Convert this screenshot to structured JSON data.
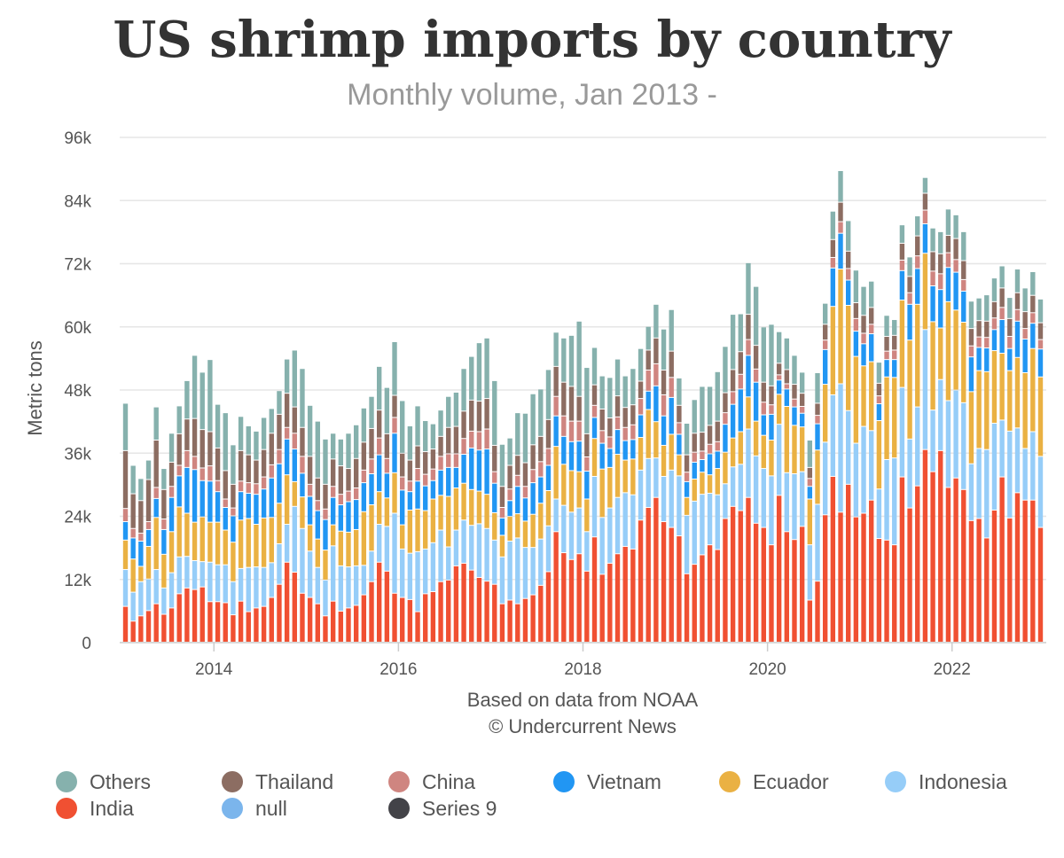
{
  "chart_data": {
    "type": "bar",
    "stacked": true,
    "title": "US shrimp imports by country",
    "subtitle": "Monthly volume, Jan 2013 -",
    "ylabel": "Metric tons",
    "xlabel": "Based on data from NOAA",
    "credit": "© Undercurrent News",
    "ylim": [
      0,
      96000
    ],
    "yticks": [
      0,
      12000,
      24000,
      36000,
      48000,
      60000,
      72000,
      84000,
      96000
    ],
    "ytick_labels": [
      "0",
      "12k",
      "24k",
      "36k",
      "48k",
      "60k",
      "72k",
      "84k",
      "96k"
    ],
    "xticks": [
      "2014",
      "2016",
      "2018",
      "2020",
      "2022"
    ],
    "x_start": "2013-01",
    "grid": true,
    "legend_position": "bottom",
    "legend": [
      {
        "name": "Others",
        "color": "#86b1ad"
      },
      {
        "name": "Thailand",
        "color": "#8c6d62"
      },
      {
        "name": "China",
        "color": "#cf8580"
      },
      {
        "name": "Vietnam",
        "color": "#2196f3"
      },
      {
        "name": "Ecuador",
        "color": "#eab143"
      },
      {
        "name": "Indonesia",
        "color": "#96cdf8"
      },
      {
        "name": "India",
        "color": "#f05032"
      },
      {
        "name": "null",
        "color": "#7bb5ec"
      },
      {
        "name": "Series 9",
        "color": "#434348"
      }
    ],
    "months": [
      "2013-01",
      "2013-02",
      "2013-03",
      "2013-04",
      "2013-05",
      "2013-06",
      "2013-07",
      "2013-08",
      "2013-09",
      "2013-10",
      "2013-11",
      "2013-12",
      "2014-01",
      "2014-02",
      "2014-03",
      "2014-04",
      "2014-05",
      "2014-06",
      "2014-07",
      "2014-08",
      "2014-09",
      "2014-10",
      "2014-11",
      "2014-12",
      "2015-01",
      "2015-02",
      "2015-03",
      "2015-04",
      "2015-05",
      "2015-06",
      "2015-07",
      "2015-08",
      "2015-09",
      "2015-10",
      "2015-11",
      "2015-12",
      "2016-01",
      "2016-02",
      "2016-03",
      "2016-04",
      "2016-05",
      "2016-06",
      "2016-07",
      "2016-08",
      "2016-09",
      "2016-10",
      "2016-11",
      "2016-12",
      "2017-01",
      "2017-02",
      "2017-03",
      "2017-04",
      "2017-05",
      "2017-06",
      "2017-07",
      "2017-08",
      "2017-09",
      "2017-10",
      "2017-11",
      "2017-12",
      "2018-01",
      "2018-02",
      "2018-03",
      "2018-04",
      "2018-05",
      "2018-06",
      "2018-07",
      "2018-08",
      "2018-09",
      "2018-10",
      "2018-11",
      "2018-12",
      "2019-01",
      "2019-02",
      "2019-03",
      "2019-04",
      "2019-05",
      "2019-06",
      "2019-07",
      "2019-08",
      "2019-09",
      "2019-10",
      "2019-11",
      "2019-12",
      "2020-01",
      "2020-02",
      "2020-03",
      "2020-04",
      "2020-05",
      "2020-06",
      "2020-07",
      "2020-08",
      "2020-09",
      "2020-10",
      "2020-11",
      "2020-12",
      "2021-01",
      "2021-02",
      "2021-03",
      "2021-04",
      "2021-05",
      "2021-06",
      "2021-07",
      "2021-08",
      "2021-09",
      "2021-10",
      "2021-11",
      "2021-12",
      "2022-01",
      "2022-02",
      "2022-03",
      "2022-04",
      "2022-05",
      "2022-06",
      "2022-07",
      "2022-08",
      "2022-09",
      "2022-10",
      "2022-11",
      "2022-12"
    ],
    "series": [
      {
        "name": "India",
        "color": "#f05032",
        "values": [
          6800,
          4000,
          5000,
          6000,
          7300,
          5300,
          6500,
          9200,
          10300,
          10000,
          10500,
          7700,
          7700,
          7500,
          5200,
          7800,
          5800,
          6500,
          6800,
          8500,
          11000,
          15200,
          13300,
          9300,
          8500,
          7300,
          5000,
          7800,
          5900,
          6500,
          7000,
          9000,
          11500,
          15200,
          13500,
          9300,
          8500,
          8100,
          5800,
          9200,
          9600,
          11500,
          11800,
          14500,
          15000,
          13700,
          12300,
          11600,
          11000,
          7300,
          8000,
          7300,
          8300,
          9000,
          10800,
          13400,
          21000,
          17000,
          15700,
          16800,
          13500,
          20000,
          12900,
          15000,
          16800,
          18200,
          17700,
          23200,
          25600,
          27500,
          22900,
          21800,
          20200,
          13000,
          14800,
          16600,
          18500,
          17600,
          23500,
          25800,
          25000,
          27500,
          22600,
          21800,
          18500,
          27900,
          21000,
          19500,
          22000,
          8000,
          11600,
          24200,
          31500,
          24700,
          30000,
          23800,
          24500,
          27000,
          19700,
          19400,
          18500,
          31400,
          25500,
          29700,
          36600,
          32400,
          36400,
          29400,
          31200,
          29000,
          23100,
          23500,
          19800,
          25100,
          31400,
          23600,
          28400,
          27000,
          27000,
          21800
        ]
      },
      {
        "name": "Indonesia",
        "color": "#96cdf8",
        "values": [
          7000,
          5500,
          6500,
          6000,
          6500,
          5000,
          6700,
          7000,
          6000,
          5500,
          4800,
          7500,
          7000,
          7200,
          6300,
          6200,
          8400,
          7800,
          7400,
          6600,
          7700,
          7200,
          12500,
          12300,
          8800,
          6900,
          6800,
          10500,
          8600,
          7800,
          7500,
          5600,
          5800,
          7200,
          8500,
          15200,
          9200,
          8800,
          11400,
          8500,
          9300,
          9800,
          6300,
          6800,
          8200,
          8500,
          10200,
          10000,
          8400,
          8900,
          11200,
          12500,
          9700,
          9000,
          8800,
          8700,
          6200,
          9000,
          9000,
          8700,
          7500,
          11500,
          10800,
          10500,
          10700,
          10200,
          10300,
          9500,
          9300,
          7500,
          8600,
          10900,
          11400,
          11100,
          12000,
          11500,
          9800,
          10400,
          6600,
          7500,
          8800,
          13000,
          12800,
          11200,
          13100,
          13500,
          11200,
          12500,
          10400,
          10500,
          14600,
          13800,
          15500,
          24400,
          14000,
          14000,
          16500,
          13200,
          9400,
          15300,
          16500,
          17000,
          13100,
          15000,
          22800,
          11700,
          13500,
          16500,
          16700,
          16500,
          10800,
          13300,
          16800,
          16500,
          10800,
          16500,
          12300,
          9800,
          13000,
          13500
        ]
      },
      {
        "name": "Ecuador",
        "color": "#eab143",
        "values": [
          5600,
          6300,
          2900,
          6200,
          9900,
          6400,
          7800,
          9500,
          8200,
          7300,
          8500,
          7600,
          8100,
          6600,
          7500,
          9200,
          9300,
          8100,
          9400,
          8600,
          7700,
          9400,
          4700,
          6000,
          5000,
          5400,
          5700,
          4000,
          6600,
          6600,
          6900,
          10200,
          8800,
          6200,
          5400,
          7700,
          4600,
          8200,
          8100,
          7300,
          8300,
          6600,
          9600,
          8000,
          7000,
          6800,
          6200,
          6500,
          5200,
          4100,
          4700,
          4600,
          5000,
          6300,
          6800,
          6700,
          10000,
          7800,
          7900,
          6900,
          6200,
          7200,
          9200,
          7700,
          8200,
          6200,
          6800,
          6200,
          9300,
          6900,
          5900,
          6800,
          4000,
          3400,
          4200,
          4200,
          3500,
          5000,
          6000,
          5500,
          6200,
          6100,
          6600,
          6300,
          6800,
          5700,
          12600,
          9200,
          8500,
          8700,
          10300,
          11000,
          16800,
          21800,
          20000,
          16500,
          11500,
          13100,
          13000,
          15700,
          15300,
          16600,
          18800,
          19500,
          14500,
          16800,
          9800,
          18800,
          15200,
          15300,
          13700,
          14800,
          14800,
          13800,
          12700,
          11500,
          13400,
          14400,
          15800,
          15100
        ]
      },
      {
        "name": "Vietnam",
        "color": "#2196f3",
        "values": [
          3500,
          4000,
          4800,
          3200,
          3600,
          4700,
          6500,
          5900,
          8700,
          10000,
          6900,
          7800,
          5800,
          4300,
          5000,
          5400,
          4800,
          5700,
          5500,
          7500,
          7500,
          6800,
          6200,
          4500,
          5400,
          5400,
          5800,
          5200,
          5000,
          5800,
          5700,
          5500,
          5900,
          7000,
          4700,
          7500,
          6600,
          3500,
          5300,
          4700,
          3500,
          4800,
          5500,
          3900,
          5500,
          7900,
          7800,
          8600,
          5600,
          3300,
          3000,
          5200,
          4400,
          6000,
          5000,
          4800,
          5800,
          5300,
          5500,
          5800,
          5300,
          4000,
          4900,
          3600,
          4700,
          3700,
          3700,
          4300,
          3500,
          6800,
          5600,
          7000,
          3900,
          3000,
          3200,
          2400,
          4000,
          3300,
          5300,
          6400,
          8100,
          7900,
          7400,
          3900,
          4900,
          2700,
          3300,
          3500,
          2600,
          2400,
          5000,
          6600,
          7300,
          6800,
          4800,
          4800,
          4200,
          5300,
          3200,
          3300,
          3400,
          5600,
          6800,
          6800,
          5600,
          6800,
          7300,
          6500,
          7200,
          5900,
          6600,
          4400,
          4500,
          4000,
          6400,
          4200,
          6900,
          6400,
          4800,
          5300
        ]
      },
      {
        "name": "China",
        "color": "#cf8580",
        "values": [
          2500,
          1800,
          1500,
          1500,
          2100,
          2000,
          2100,
          2000,
          3200,
          2500,
          2400,
          2900,
          2100,
          1600,
          1500,
          2000,
          2000,
          2000,
          2300,
          2500,
          2700,
          2200,
          3000,
          3200,
          2300,
          1900,
          2000,
          2100,
          2000,
          2000,
          2200,
          2400,
          2800,
          3200,
          2800,
          3000,
          2500,
          2000,
          2400,
          2200,
          2200,
          2600,
          2600,
          2600,
          3000,
          3200,
          3500,
          3800,
          2200,
          2000,
          2200,
          2100,
          2200,
          2500,
          2900,
          3200,
          3700,
          3900,
          3900,
          3800,
          2700,
          2300,
          2400,
          2200,
          2400,
          2500,
          2800,
          3100,
          4000,
          4200,
          4000,
          3800,
          2200,
          1800,
          1900,
          1600,
          1800,
          1800,
          2200,
          2400,
          2800,
          3000,
          2500,
          2400,
          1800,
          1000,
          1000,
          1500,
          1300,
          1500,
          1600,
          1800,
          2000,
          2200,
          2200,
          2400,
          2000,
          1800,
          1500,
          1600,
          1800,
          2000,
          2200,
          2400,
          2600,
          2800,
          3000,
          2800,
          2400,
          2200,
          2100,
          2000,
          2000,
          2200,
          2300,
          2300,
          2200,
          2000,
          2000,
          1800
        ]
      },
      {
        "name": "Thailand",
        "color": "#8c6d62",
        "values": [
          11000,
          6600,
          6200,
          8000,
          9000,
          5600,
          4600,
          6000,
          6000,
          7200,
          7300,
          6500,
          6200,
          5400,
          4500,
          5800,
          5300,
          4500,
          5200,
          6000,
          6700,
          6500,
          5000,
          5500,
          5300,
          4300,
          4700,
          5200,
          5400,
          4300,
          5600,
          5300,
          5800,
          5300,
          4700,
          4200,
          4500,
          4000,
          4300,
          4300,
          3800,
          3800,
          5000,
          5200,
          5200,
          5900,
          5800,
          5800,
          5000,
          4000,
          4500,
          3800,
          4500,
          4700,
          4800,
          5500,
          5700,
          6400,
          6600,
          4700,
          4400,
          3900,
          4100,
          3600,
          4000,
          3800,
          3800,
          3300,
          3800,
          4900,
          4700,
          5000,
          3300,
          3300,
          3600,
          3600,
          3600,
          3900,
          3800,
          4200,
          4300,
          4800,
          4500,
          3800,
          3600,
          2200,
          2700,
          2800,
          2500,
          2100,
          2300,
          3000,
          3400,
          3700,
          3300,
          3000,
          3400,
          3200,
          2400,
          2800,
          2800,
          3200,
          3100,
          3800,
          3200,
          3700,
          3800,
          3300,
          4000,
          3600,
          3300,
          3100,
          3100,
          3100,
          3700,
          3400,
          3200,
          3200,
          3300,
          3200
        ]
      },
      {
        "name": "Others",
        "color": "#86b1ad",
        "values": [
          9000,
          5400,
          4200,
          3700,
          6300,
          4000,
          5500,
          5300,
          7300,
          12000,
          10900,
          13700,
          8300,
          11000,
          7500,
          6500,
          5500,
          5500,
          6100,
          4700,
          4500,
          6500,
          10800,
          11200,
          9700,
          10800,
          8600,
          4900,
          5100,
          6700,
          6400,
          6500,
          6100,
          8300,
          8800,
          10200,
          10000,
          6500,
          7600,
          5900,
          4800,
          5000,
          5900,
          6500,
          8100,
          8300,
          11100,
          11500,
          12300,
          8000,
          5200,
          8100,
          9400,
          9700,
          9000,
          9500,
          6500,
          8400,
          9700,
          14300,
          12600,
          7100,
          6300,
          7700,
          7000,
          6000,
          6900,
          6200,
          4500,
          6400,
          7800,
          7900,
          5200,
          6000,
          6400,
          8700,
          7400,
          9400,
          8800,
          10500,
          7200,
          9800,
          11200,
          10500,
          11700,
          6000,
          6000,
          5500,
          4000,
          5200,
          5800,
          4000,
          5400,
          6000,
          5800,
          6200,
          5500,
          5000,
          4000,
          4000,
          3000,
          3500,
          3700,
          3800,
          3000,
          4500,
          4200,
          5000,
          4500,
          5500,
          5200,
          4300,
          5000,
          4500,
          4200,
          4000,
          4500,
          4500,
          4500,
          4500
        ]
      }
    ]
  }
}
